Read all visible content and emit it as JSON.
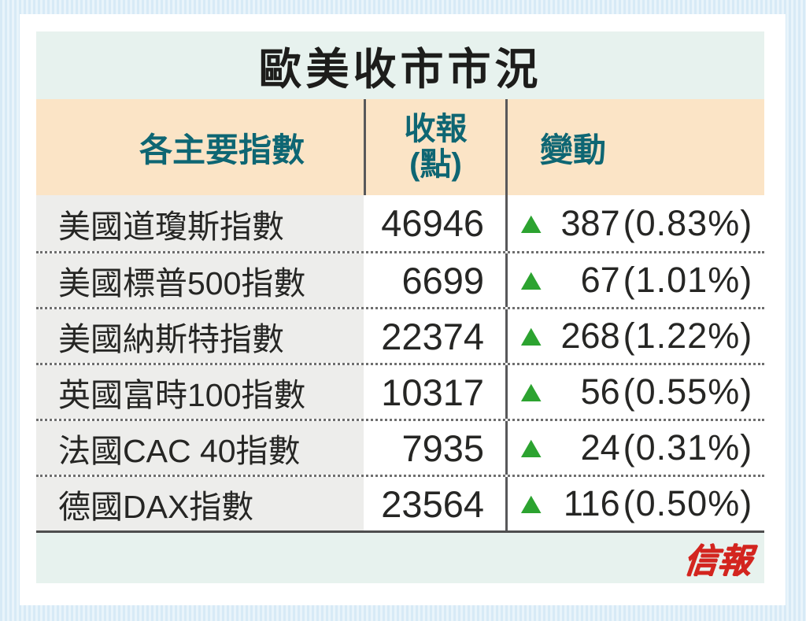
{
  "title": "歐美收市市況",
  "header": {
    "index_col": "各主要指數",
    "close_col_line1": "收報",
    "close_col_line2": "(點)",
    "change_col": "變動"
  },
  "up_icon": "▲",
  "rows": [
    {
      "name": "美國道瓊斯指數",
      "close": "46946",
      "change": "387",
      "change_pct": "(0.83%)"
    },
    {
      "name": "美國標普500指數",
      "close": "6699",
      "change": "67",
      "change_pct": "(1.01%)"
    },
    {
      "name": "美國納斯特指數",
      "close": "22374",
      "change": "268",
      "change_pct": "(1.22%)"
    },
    {
      "name": "英國富時100指數",
      "close": "10317",
      "change": "56",
      "change_pct": "(0.55%)"
    },
    {
      "name": "法國CAC 40指數",
      "close": "7935",
      "change": "24",
      "change_pct": "(0.31%)"
    },
    {
      "name": "德國DAX指數",
      "close": "23564",
      "change": "116",
      "change_pct": "(0.50%)"
    }
  ],
  "footer": {
    "logo": "信報"
  },
  "colors": {
    "up_green": "#2ca330",
    "header_text_teal": "#0e6673",
    "title_bg_teal": "#e7f2ee",
    "header_bg_peach": "#fbe4c6",
    "row_name_bg_gray": "#ededeb",
    "logo_red": "#d3251f"
  },
  "chart_data": {
    "type": "table",
    "title": "歐美收市市況",
    "columns": [
      "各主要指數",
      "收報(點)",
      "變動"
    ],
    "rows": [
      {
        "index": "美國道瓊斯指數",
        "close": 46946,
        "change": 387,
        "change_pct": 0.83,
        "direction": "up"
      },
      {
        "index": "美國標普500指數",
        "close": 6699,
        "change": 67,
        "change_pct": 1.01,
        "direction": "up"
      },
      {
        "index": "美國納斯特指數",
        "close": 22374,
        "change": 268,
        "change_pct": 1.22,
        "direction": "up"
      },
      {
        "index": "英國富時100指數",
        "close": 10317,
        "change": 56,
        "change_pct": 0.55,
        "direction": "up"
      },
      {
        "index": "法國CAC 40指數",
        "close": 7935,
        "change": 24,
        "change_pct": 0.31,
        "direction": "up"
      },
      {
        "index": "德國DAX指數",
        "close": 23564,
        "change": 116,
        "change_pct": 0.5,
        "direction": "up"
      }
    ],
    "legend": null,
    "source_logo": "信報"
  }
}
